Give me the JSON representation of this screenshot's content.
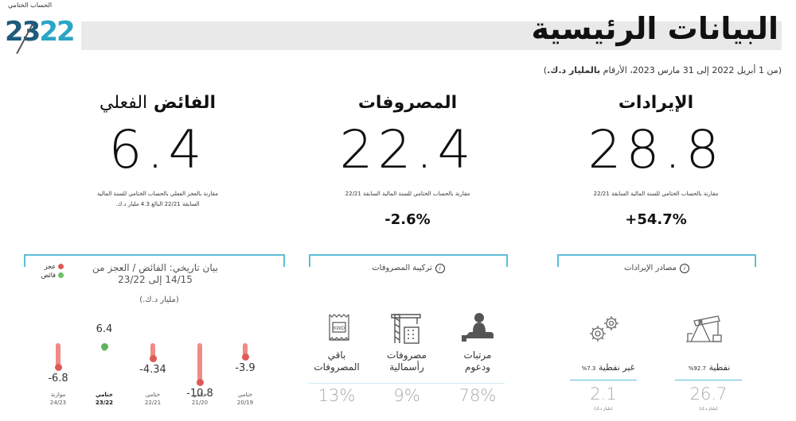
{
  "header": {
    "logo_caption": "الحساب الختامي",
    "logo_number_a": "23",
    "logo_number_b": "22",
    "title": "البيانات الرئيسية",
    "subtitle_prefix": "(من 1 أبريل 2022 إلى 31 مارس 2023، الأرقام ",
    "subtitle_bold": "بالمليار د.ك.",
    "subtitle_suffix": ")"
  },
  "kpis": {
    "revenue": {
      "title": "الإيرادات",
      "value": "28.8",
      "note": "مقارنة بالحساب الختامي للسنة المالية السابقة 22/21",
      "change": "+54.7%"
    },
    "expenses": {
      "title": "المصروفات",
      "value": "22.4",
      "note": "مقارنة بالحساب الختامي للسنة المالية السابقة 22/21",
      "change": "-2.6%"
    },
    "surplus": {
      "title_bold": "الفائض",
      "title_light": "الفعلي",
      "value": "6.4",
      "note_line1": "مقارنة بالعجز الفعلي بالحساب الختامي للسنة المالية",
      "note_line2": "السابقة 22/21 البالغ 4.3 مليار د.ك."
    }
  },
  "revenue_sources": {
    "label": "مصادر الإيرادات",
    "info_icon": "info-icon",
    "oil": {
      "label": "نفطية",
      "pct": "92.7%",
      "value": "26.7",
      "unit": "(مليار د.ك)",
      "icon": "oil-pump-icon"
    },
    "non_oil": {
      "label": "غير نفطية",
      "pct": "7.3%",
      "value": "2.1",
      "unit": "(مليار د.ك)",
      "icon": "gears-icon"
    }
  },
  "expense_composition": {
    "label": "تركيبة المصروفات",
    "info_icon": "info-icon",
    "items": [
      {
        "label_1": "مرتبات",
        "label_2": "ودعوم",
        "pct": "78%",
        "icon": "hand-person-icon"
      },
      {
        "label_1": "مصروفات",
        "label_2": "رأسمالية",
        "pct": "9%",
        "icon": "crane-building-icon"
      },
      {
        "label_1": "باقي",
        "label_2": "المصروفات",
        "pct": "13%",
        "icon": "kwd-document-icon"
      }
    ]
  },
  "history_chart": {
    "title_1": "بيان تاريخي:  الفائض / العجز من",
    "title_2": "14/15 إلى 23/22",
    "unit": "(مليار د.ك.)",
    "legend": [
      {
        "label": "عجز",
        "color": "#e05a55"
      },
      {
        "label": "فائض",
        "color": "#6cbf6a"
      }
    ],
    "colors": {
      "deficit": "#f08a85",
      "deficit_dot": "#e05a55",
      "surplus": "#8fd18c",
      "surplus_dot": "#5fb35c"
    }
  },
  "chart_data": {
    "type": "bar",
    "unit": "(مليار د.ك.)",
    "categories": [
      "20/19",
      "21/20",
      "22/21",
      "23/22",
      "24/23"
    ],
    "category_types": [
      "ختامي",
      "ختامي",
      "ختامي",
      "ختامي",
      "موازنة"
    ],
    "values": [
      -3.9,
      -10.8,
      -4.34,
      6.4,
      -6.8
    ],
    "value_labels": [
      "-3.9",
      "-10.8",
      "-4.34",
      "6.4",
      "-6.8"
    ]
  }
}
